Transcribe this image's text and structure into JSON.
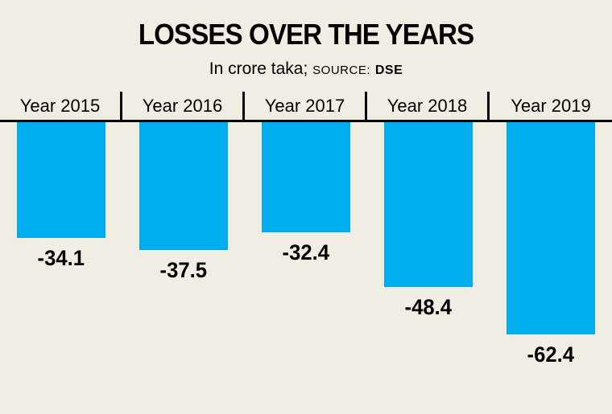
{
  "header": {
    "title": "LOSSES OVER THE YEARS",
    "subtitle_main": "In crore taka;",
    "source_label": "SOURCE:",
    "source_value": "DSE"
  },
  "chart_data": {
    "type": "bar",
    "title": "LOSSES OVER THE YEARS",
    "subtitle": "In crore taka; SOURCE: DSE",
    "unit": "crore taka",
    "source": "DSE",
    "categories": [
      "Year 2015",
      "Year 2016",
      "Year 2017",
      "Year 2018",
      "Year 2019"
    ],
    "values": [
      -34.1,
      -37.5,
      -32.4,
      -48.4,
      -62.4
    ],
    "value_labels": [
      "-34.1",
      "-37.5",
      "-32.4",
      "-48.4",
      "-62.4"
    ],
    "orientation": "negative-bars-hanging-from-top-baseline",
    "ylim": [
      -70,
      0
    ],
    "grid": false,
    "legend": "none",
    "bar_color": "#00aeef",
    "background_color": "#f0ede3",
    "axis_line_color": "#000000"
  }
}
